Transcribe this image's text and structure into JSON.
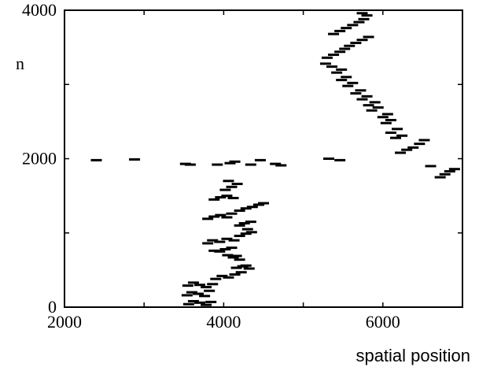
{
  "chart_data": {
    "type": "scatter",
    "title": "",
    "xlabel": "spatial position",
    "ylabel": "n",
    "xlim": [
      2000,
      7000
    ],
    "ylim": [
      0,
      4000
    ],
    "x_ticks": [
      2000,
      4000,
      6000
    ],
    "y_ticks": [
      0,
      2000,
      4000
    ],
    "x_tick_labels": [
      "2000",
      "4000",
      "6000"
    ],
    "y_tick_labels": [
      "0",
      "2000",
      "4000"
    ],
    "grid": false,
    "legend": "none",
    "mark_color": "#000000",
    "series": [
      {
        "points": [
          [
            3560,
            40
          ],
          [
            3620,
            80
          ],
          [
            3700,
            60
          ],
          [
            3780,
            30
          ],
          [
            3840,
            70
          ],
          [
            3540,
            160
          ],
          [
            3600,
            200
          ],
          [
            3680,
            180
          ],
          [
            3760,
            150
          ],
          [
            3820,
            220
          ],
          [
            3550,
            290
          ],
          [
            3620,
            330
          ],
          [
            3700,
            300
          ],
          [
            3780,
            270
          ],
          [
            3860,
            310
          ],
          [
            3900,
            380
          ],
          [
            3980,
            420
          ],
          [
            4060,
            400
          ],
          [
            4140,
            440
          ],
          [
            4220,
            470
          ],
          [
            4160,
            530
          ],
          [
            4240,
            550
          ],
          [
            4320,
            520
          ],
          [
            4280,
            560
          ],
          [
            4200,
            640
          ],
          [
            4120,
            670
          ],
          [
            4050,
            700
          ],
          [
            4160,
            690
          ],
          [
            3950,
            750
          ],
          [
            4020,
            780
          ],
          [
            4100,
            800
          ],
          [
            3880,
            760
          ],
          [
            3800,
            860
          ],
          [
            3860,
            900
          ],
          [
            3950,
            880
          ],
          [
            4040,
            920
          ],
          [
            4130,
            900
          ],
          [
            4200,
            960
          ],
          [
            4280,
            990
          ],
          [
            4350,
            1010
          ],
          [
            4300,
            1050
          ],
          [
            4200,
            1100
          ],
          [
            4260,
            1130
          ],
          [
            4340,
            1150
          ],
          [
            3800,
            1190
          ],
          [
            3880,
            1220
          ],
          [
            3960,
            1240
          ],
          [
            4040,
            1210
          ],
          [
            4100,
            1260
          ],
          [
            4200,
            1300
          ],
          [
            4280,
            1330
          ],
          [
            4360,
            1350
          ],
          [
            4440,
            1380
          ],
          [
            4500,
            1400
          ],
          [
            3880,
            1450
          ],
          [
            3960,
            1480
          ],
          [
            4040,
            1500
          ],
          [
            4120,
            1470
          ],
          [
            4020,
            1580
          ],
          [
            4100,
            1620
          ],
          [
            4170,
            1660
          ],
          [
            4060,
            1700
          ],
          [
            4080,
            1940
          ],
          [
            4140,
            1960
          ],
          [
            4460,
            1980
          ],
          [
            2400,
            1980
          ],
          [
            2880,
            1990
          ],
          [
            3520,
            1930
          ],
          [
            3580,
            1920
          ],
          [
            3920,
            1920
          ],
          [
            4340,
            1920
          ],
          [
            4650,
            1930
          ],
          [
            4720,
            1910
          ],
          [
            5320,
            2000
          ],
          [
            5460,
            1980
          ],
          [
            6720,
            1750
          ],
          [
            6780,
            1790
          ],
          [
            6840,
            1830
          ],
          [
            6900,
            1860
          ],
          [
            6600,
            1900
          ],
          [
            6220,
            2080
          ],
          [
            6300,
            2120
          ],
          [
            6380,
            2150
          ],
          [
            6460,
            2200
          ],
          [
            6520,
            2250
          ],
          [
            6160,
            2280
          ],
          [
            6240,
            2310
          ],
          [
            6100,
            2350
          ],
          [
            6180,
            2400
          ],
          [
            6040,
            2480
          ],
          [
            6100,
            2520
          ],
          [
            6000,
            2560
          ],
          [
            6060,
            2600
          ],
          [
            5860,
            2650
          ],
          [
            5940,
            2690
          ],
          [
            5820,
            2720
          ],
          [
            5900,
            2760
          ],
          [
            5740,
            2800
          ],
          [
            5800,
            2840
          ],
          [
            5660,
            2880
          ],
          [
            5720,
            2920
          ],
          [
            5560,
            2980
          ],
          [
            5620,
            3020
          ],
          [
            5480,
            3060
          ],
          [
            5540,
            3100
          ],
          [
            5420,
            3160
          ],
          [
            5480,
            3200
          ],
          [
            5360,
            3240
          ],
          [
            5280,
            3280
          ],
          [
            5300,
            3360
          ],
          [
            5380,
            3400
          ],
          [
            5460,
            3440
          ],
          [
            5520,
            3480
          ],
          [
            5580,
            3520
          ],
          [
            5660,
            3560
          ],
          [
            5740,
            3600
          ],
          [
            5820,
            3640
          ],
          [
            5380,
            3680
          ],
          [
            5460,
            3720
          ],
          [
            5540,
            3760
          ],
          [
            5620,
            3800
          ],
          [
            5700,
            3840
          ],
          [
            5760,
            3880
          ],
          [
            5800,
            3930
          ],
          [
            5740,
            3960
          ]
        ]
      }
    ]
  }
}
